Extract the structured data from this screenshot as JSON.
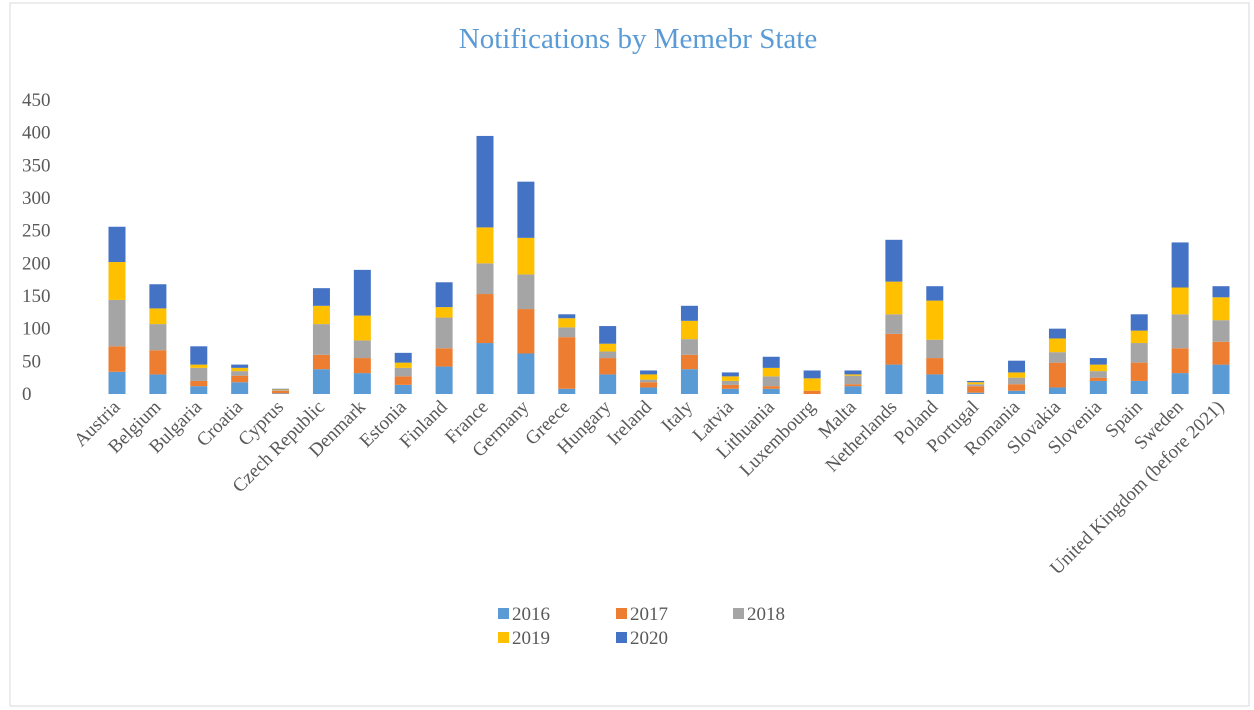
{
  "chart_data": {
    "type": "stacked_bar",
    "title": "Notifications  by Memebr State",
    "categories": [
      "Austria",
      "Belgium",
      "Bulgaria",
      "Croatia",
      "Cyprus",
      "Czech Republic",
      "Denmark",
      "Estonia",
      "Finland",
      "France",
      "Germany",
      "Greece",
      "Hungary",
      "Ireland",
      "Italy",
      "Latvia",
      "Lithuania",
      "Luxembourg",
      "Malta",
      "Netherlands",
      "Poland",
      "Portugal",
      "Romania",
      "Slovakia",
      "Slovenia",
      "Spain",
      "Sweden",
      "United Kingdom (before 2021)"
    ],
    "series": [
      {
        "name": "2016",
        "color": "#5b9bd5",
        "values": [
          34,
          30,
          12,
          18,
          1,
          38,
          32,
          14,
          42,
          78,
          62,
          8,
          30,
          10,
          38,
          8,
          8,
          0,
          12,
          45,
          30,
          2,
          5,
          10,
          20,
          20,
          32,
          45
        ]
      },
      {
        "name": "2017",
        "color": "#ed7d31",
        "values": [
          39,
          37,
          8,
          10,
          4,
          22,
          23,
          13,
          28,
          75,
          68,
          79,
          25,
          8,
          22,
          6,
          4,
          5,
          3,
          47,
          25,
          10,
          10,
          38,
          5,
          28,
          38,
          35
        ]
      },
      {
        "name": "2018",
        "color": "#a5a5a5",
        "values": [
          71,
          40,
          20,
          7,
          1,
          47,
          27,
          13,
          47,
          47,
          53,
          15,
          10,
          4,
          24,
          6,
          15,
          0,
          13,
          30,
          28,
          3,
          10,
          16,
          10,
          30,
          52,
          33
        ]
      },
      {
        "name": "2019",
        "color": "#ffc000",
        "values": [
          58,
          24,
          5,
          5,
          1,
          28,
          38,
          8,
          16,
          55,
          56,
          14,
          12,
          8,
          28,
          7,
          13,
          19,
          2,
          50,
          60,
          3,
          8,
          21,
          10,
          19,
          41,
          35
        ]
      },
      {
        "name": "2020",
        "color": "#4472c4",
        "values": [
          54,
          37,
          28,
          5,
          1,
          27,
          70,
          15,
          38,
          140,
          86,
          6,
          27,
          6,
          23,
          6,
          17,
          12,
          6,
          64,
          22,
          2,
          18,
          15,
          10,
          25,
          69,
          17
        ]
      }
    ],
    "ylim": [
      0,
      450
    ],
    "yticks": [
      0,
      50,
      100,
      150,
      200,
      250,
      300,
      350,
      400,
      450
    ]
  }
}
